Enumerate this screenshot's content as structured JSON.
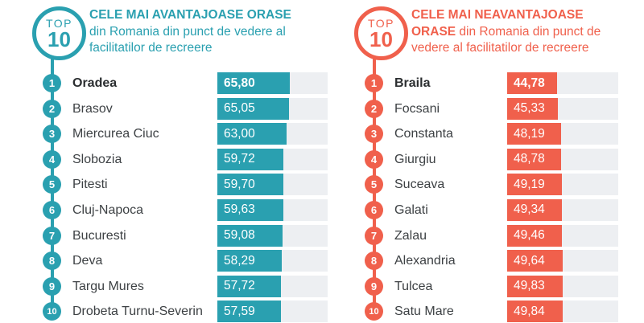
{
  "colors": {
    "teal": "#2AA0B0",
    "coral": "#F0604C",
    "track": "#EDEFF2",
    "label_text": "#3D4144"
  },
  "panels": [
    {
      "id": "advantageous",
      "color": "#2AA0B0",
      "badge": {
        "top": "TOP",
        "number": "10"
      },
      "title_bold": "CELE MAI AVANTAJOASE ORASE",
      "title_rest": " din Romania din punct de vedere al facilitatilor de recreere",
      "rows": [
        {
          "rank": "1",
          "city": "Oradea",
          "value_display": "65,80",
          "value": 65.8
        },
        {
          "rank": "2",
          "city": "Brasov",
          "value_display": "65,05",
          "value": 65.05
        },
        {
          "rank": "3",
          "city": "Miercurea Ciuc",
          "value_display": "63,00",
          "value": 63.0
        },
        {
          "rank": "4",
          "city": "Slobozia",
          "value_display": "59,72",
          "value": 59.72
        },
        {
          "rank": "5",
          "city": "Pitesti",
          "value_display": "59,70",
          "value": 59.7
        },
        {
          "rank": "6",
          "city": "Cluj-Napoca",
          "value_display": "59,63",
          "value": 59.63
        },
        {
          "rank": "7",
          "city": "Bucuresti",
          "value_display": "59,08",
          "value": 59.08
        },
        {
          "rank": "8",
          "city": "Deva",
          "value_display": "58,29",
          "value": 58.29
        },
        {
          "rank": "9",
          "city": "Targu Mures",
          "value_display": "57,72",
          "value": 57.72
        },
        {
          "rank": "10",
          "city": "Drobeta Turnu-Severin",
          "value_display": "57,59",
          "value": 57.59
        }
      ]
    },
    {
      "id": "disadvantageous",
      "color": "#F0604C",
      "badge": {
        "top": "TOP",
        "number": "10"
      },
      "title_bold": "CELE MAI NEAVANTAJOASE ORASE",
      "title_rest": " din Romania din punct de vedere al facilitatilor de recreere",
      "rows": [
        {
          "rank": "1",
          "city": "Braila",
          "value_display": "44,78",
          "value": 44.78
        },
        {
          "rank": "2",
          "city": "Focsani",
          "value_display": "45,33",
          "value": 45.33
        },
        {
          "rank": "3",
          "city": "Constanta",
          "value_display": "48,19",
          "value": 48.19
        },
        {
          "rank": "4",
          "city": "Giurgiu",
          "value_display": "48,78",
          "value": 48.78
        },
        {
          "rank": "5",
          "city": "Suceava",
          "value_display": "49,19",
          "value": 49.19
        },
        {
          "rank": "6",
          "city": "Galati",
          "value_display": "49,34",
          "value": 49.34
        },
        {
          "rank": "7",
          "city": "Zalau",
          "value_display": "49,46",
          "value": 49.46
        },
        {
          "rank": "8",
          "city": "Alexandria",
          "value_display": "49,64",
          "value": 49.64
        },
        {
          "rank": "9",
          "city": "Tulcea",
          "value_display": "49,83",
          "value": 49.83
        },
        {
          "rank": "10",
          "city": "Satu Mare",
          "value_display": "49,84",
          "value": 49.84
        }
      ]
    }
  ],
  "chart_data": [
    {
      "type": "bar",
      "orientation": "horizontal",
      "title": "TOP 10 CELE MAI AVANTAJOASE ORASE din Romania din punct de vedere al facilitatilor de recreere",
      "categories": [
        "Oradea",
        "Brasov",
        "Miercurea Ciuc",
        "Slobozia",
        "Pitesti",
        "Cluj-Napoca",
        "Bucuresti",
        "Deva",
        "Targu Mures",
        "Drobeta Turnu-Severin"
      ],
      "values": [
        65.8,
        65.05,
        63.0,
        59.72,
        59.7,
        59.63,
        59.08,
        58.29,
        57.72,
        57.59
      ],
      "xlabel": "",
      "ylabel": "",
      "xlim": [
        0,
        100
      ],
      "bar_color": "#2AA0B0",
      "track_color": "#EDEFF2",
      "grid": false,
      "legend": false,
      "data_labels": true
    },
    {
      "type": "bar",
      "orientation": "horizontal",
      "title": "TOP 10 CELE MAI NEAVANTAJOASE ORASE din Romania din punct de vedere al facilitatilor de recreere",
      "categories": [
        "Braila",
        "Focsani",
        "Constanta",
        "Giurgiu",
        "Suceava",
        "Galati",
        "Zalau",
        "Alexandria",
        "Tulcea",
        "Satu Mare"
      ],
      "values": [
        44.78,
        45.33,
        48.19,
        48.78,
        49.19,
        49.34,
        49.46,
        49.64,
        49.83,
        49.84
      ],
      "xlabel": "",
      "ylabel": "",
      "xlim": [
        0,
        100
      ],
      "bar_color": "#F0604C",
      "track_color": "#EDEFF2",
      "grid": false,
      "legend": false,
      "data_labels": true
    }
  ]
}
